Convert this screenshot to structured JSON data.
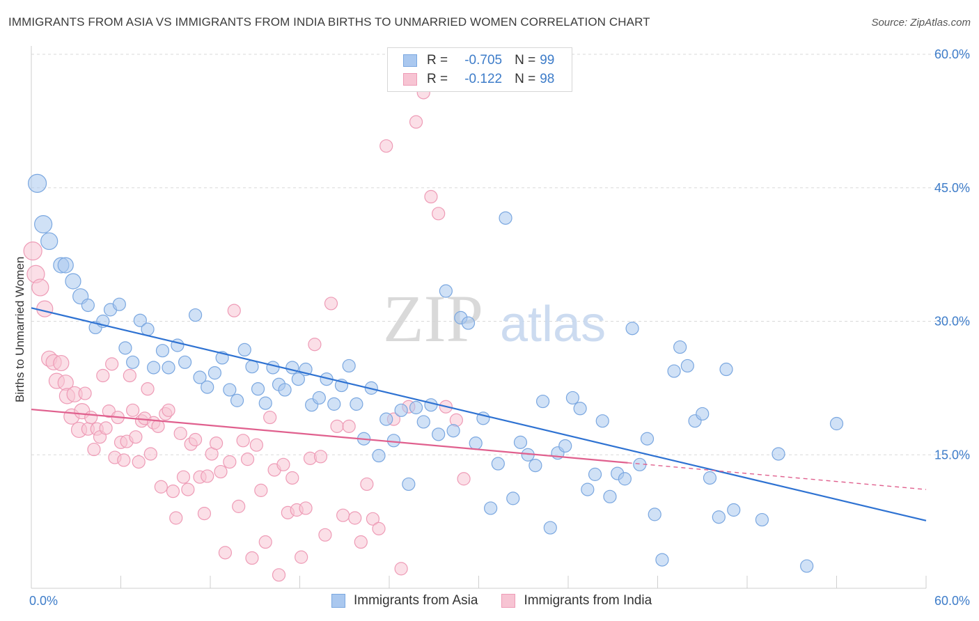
{
  "title": "IMMIGRANTS FROM ASIA VS IMMIGRANTS FROM INDIA BIRTHS TO UNMARRIED WOMEN CORRELATION CHART",
  "source": "Source: ZipAtlas.com",
  "legend": {
    "rows": [
      {
        "r_label": "R =",
        "r_value": "-0.705",
        "n_label": "N =",
        "n_value": "99",
        "color": "#7aa7e0"
      },
      {
        "r_label": "R =",
        "r_value": "-0.122",
        "n_label": "N =",
        "n_value": "98",
        "color": "#f0a0bb"
      }
    ]
  },
  "bottom_legend": {
    "asia": "Immigrants from Asia",
    "india": "Immigrants from India"
  },
  "watermark": {
    "zip": "ZIP",
    "atlas": "atlas"
  },
  "colors": {
    "asia_fill": "#aac8ef",
    "asia_stroke": "#7aa7e0",
    "asia_line": "#2e72d2",
    "india_fill": "#f7c4d3",
    "india_stroke": "#ee9bb6",
    "india_line": "#e0608e",
    "tick_text": "#3d7cc9",
    "grid": "#d9d9d9"
  },
  "chart_data": {
    "type": "scatter",
    "title": "IMMIGRANTS FROM ASIA VS IMMIGRANTS FROM INDIA BIRTHS TO UNMARRIED WOMEN CORRELATION CHART",
    "xlabel": "",
    "ylabel": "Births to Unmarried Women",
    "xlim": [
      0,
      60
    ],
    "ylim": [
      0,
      60
    ],
    "x_tick_labels": [
      "0.0%",
      "60.0%"
    ],
    "y_ticks": [
      15,
      30,
      45,
      60
    ],
    "y_tick_labels": [
      "15.0%",
      "30.0%",
      "45.0%",
      "60.0%"
    ],
    "grid": true,
    "legend_position": "top-center",
    "series": [
      {
        "name": "Immigrants from Asia",
        "trend": {
          "x": [
            0,
            60
          ],
          "y": [
            31.5,
            7.6
          ],
          "extrapolated_from": null
        },
        "points": [
          [
            0.4,
            45.5
          ],
          [
            0.8,
            40.9
          ],
          [
            1.2,
            39.0
          ],
          [
            2.0,
            36.3
          ],
          [
            2.3,
            36.3
          ],
          [
            2.8,
            34.5
          ],
          [
            3.3,
            32.8
          ],
          [
            3.8,
            31.8
          ],
          [
            4.3,
            29.3
          ],
          [
            4.8,
            30.0
          ],
          [
            5.3,
            31.3
          ],
          [
            5.9,
            31.9
          ],
          [
            6.3,
            27.0
          ],
          [
            6.8,
            25.4
          ],
          [
            7.3,
            30.1
          ],
          [
            7.8,
            29.1
          ],
          [
            8.2,
            24.8
          ],
          [
            8.8,
            26.7
          ],
          [
            9.2,
            24.8
          ],
          [
            9.8,
            27.3
          ],
          [
            10.3,
            25.4
          ],
          [
            11.0,
            30.7
          ],
          [
            11.3,
            23.7
          ],
          [
            11.8,
            22.6
          ],
          [
            12.3,
            24.2
          ],
          [
            12.8,
            25.9
          ],
          [
            13.3,
            22.3
          ],
          [
            13.8,
            21.1
          ],
          [
            14.3,
            26.8
          ],
          [
            14.8,
            24.9
          ],
          [
            15.2,
            22.4
          ],
          [
            15.7,
            20.8
          ],
          [
            16.2,
            24.8
          ],
          [
            16.6,
            22.9
          ],
          [
            17.0,
            22.3
          ],
          [
            17.5,
            24.8
          ],
          [
            17.9,
            23.5
          ],
          [
            18.4,
            24.6
          ],
          [
            18.8,
            20.6
          ],
          [
            19.3,
            21.4
          ],
          [
            19.8,
            23.5
          ],
          [
            20.3,
            20.7
          ],
          [
            20.8,
            22.8
          ],
          [
            21.3,
            25.0
          ],
          [
            21.8,
            20.7
          ],
          [
            22.3,
            16.8
          ],
          [
            22.8,
            22.5
          ],
          [
            23.3,
            14.9
          ],
          [
            23.8,
            19.0
          ],
          [
            24.3,
            16.6
          ],
          [
            24.8,
            20.0
          ],
          [
            25.3,
            11.7
          ],
          [
            25.8,
            20.3
          ],
          [
            26.3,
            18.7
          ],
          [
            26.8,
            20.6
          ],
          [
            27.3,
            17.3
          ],
          [
            27.8,
            33.4
          ],
          [
            28.3,
            17.7
          ],
          [
            28.8,
            30.4
          ],
          [
            29.3,
            29.8
          ],
          [
            29.8,
            16.3
          ],
          [
            30.3,
            19.1
          ],
          [
            30.8,
            9.0
          ],
          [
            31.3,
            14.0
          ],
          [
            31.8,
            41.6
          ],
          [
            32.3,
            10.1
          ],
          [
            32.8,
            16.4
          ],
          [
            33.3,
            15.0
          ],
          [
            33.8,
            13.8
          ],
          [
            34.3,
            21.0
          ],
          [
            34.8,
            6.8
          ],
          [
            35.3,
            15.2
          ],
          [
            35.8,
            16.0
          ],
          [
            36.3,
            21.4
          ],
          [
            36.8,
            20.2
          ],
          [
            37.3,
            11.1
          ],
          [
            37.8,
            12.8
          ],
          [
            38.3,
            18.8
          ],
          [
            38.8,
            10.3
          ],
          [
            39.3,
            12.9
          ],
          [
            39.8,
            12.3
          ],
          [
            40.3,
            29.2
          ],
          [
            40.8,
            13.9
          ],
          [
            41.3,
            16.8
          ],
          [
            41.8,
            8.3
          ],
          [
            42.3,
            3.2
          ],
          [
            43.1,
            24.4
          ],
          [
            43.5,
            27.1
          ],
          [
            44.0,
            25.0
          ],
          [
            44.5,
            18.8
          ],
          [
            45.0,
            19.6
          ],
          [
            45.5,
            12.4
          ],
          [
            46.1,
            8.0
          ],
          [
            46.6,
            24.6
          ],
          [
            47.1,
            8.8
          ],
          [
            49.0,
            7.7
          ],
          [
            50.1,
            15.1
          ],
          [
            52.0,
            2.5
          ],
          [
            54.0,
            18.5
          ]
        ]
      },
      {
        "name": "Immigrants from India",
        "trend": {
          "x": [
            0,
            40
          ],
          "y": [
            20.1,
            14.1
          ],
          "extrapolated_to": [
            60,
            11.1
          ]
        },
        "points": [
          [
            0.1,
            37.9
          ],
          [
            0.3,
            35.3
          ],
          [
            0.6,
            33.8
          ],
          [
            0.9,
            31.4
          ],
          [
            1.2,
            25.8
          ],
          [
            1.5,
            25.4
          ],
          [
            1.7,
            23.3
          ],
          [
            2.0,
            25.3
          ],
          [
            2.3,
            23.1
          ],
          [
            2.4,
            21.6
          ],
          [
            2.7,
            19.3
          ],
          [
            2.9,
            21.8
          ],
          [
            3.2,
            17.8
          ],
          [
            3.4,
            19.9
          ],
          [
            3.6,
            21.9
          ],
          [
            3.8,
            17.9
          ],
          [
            4.0,
            19.2
          ],
          [
            4.2,
            15.6
          ],
          [
            4.4,
            17.9
          ],
          [
            4.6,
            17.0
          ],
          [
            4.8,
            23.9
          ],
          [
            5.0,
            18.0
          ],
          [
            5.2,
            19.9
          ],
          [
            5.4,
            25.2
          ],
          [
            5.6,
            14.7
          ],
          [
            5.8,
            19.2
          ],
          [
            6.0,
            16.4
          ],
          [
            6.2,
            14.4
          ],
          [
            6.4,
            16.5
          ],
          [
            6.6,
            23.9
          ],
          [
            6.8,
            20.0
          ],
          [
            7.0,
            17.0
          ],
          [
            7.2,
            14.2
          ],
          [
            7.4,
            18.8
          ],
          [
            7.6,
            19.1
          ],
          [
            7.8,
            22.4
          ],
          [
            8.0,
            15.1
          ],
          [
            8.2,
            18.6
          ],
          [
            8.5,
            18.2
          ],
          [
            8.7,
            11.4
          ],
          [
            9.0,
            19.6
          ],
          [
            9.2,
            20.0
          ],
          [
            9.5,
            10.9
          ],
          [
            9.7,
            7.9
          ],
          [
            10.0,
            17.4
          ],
          [
            10.2,
            12.5
          ],
          [
            10.5,
            11.1
          ],
          [
            10.7,
            16.2
          ],
          [
            11.0,
            16.7
          ],
          [
            11.3,
            12.5
          ],
          [
            11.6,
            8.4
          ],
          [
            11.8,
            12.6
          ],
          [
            12.1,
            15.1
          ],
          [
            12.4,
            16.3
          ],
          [
            12.7,
            13.1
          ],
          [
            13.0,
            4.0
          ],
          [
            13.3,
            14.2
          ],
          [
            13.6,
            31.2
          ],
          [
            13.9,
            9.2
          ],
          [
            14.2,
            16.6
          ],
          [
            14.5,
            14.5
          ],
          [
            14.8,
            3.4
          ],
          [
            15.1,
            16.1
          ],
          [
            15.4,
            11.0
          ],
          [
            15.7,
            5.2
          ],
          [
            16.0,
            19.2
          ],
          [
            16.3,
            13.3
          ],
          [
            16.6,
            1.5
          ],
          [
            16.9,
            13.9
          ],
          [
            17.2,
            8.5
          ],
          [
            17.5,
            12.4
          ],
          [
            17.8,
            8.8
          ],
          [
            18.1,
            3.5
          ],
          [
            18.4,
            9.0
          ],
          [
            18.7,
            14.6
          ],
          [
            19.0,
            27.4
          ],
          [
            19.4,
            14.8
          ],
          [
            19.7,
            6.0
          ],
          [
            20.1,
            32.0
          ],
          [
            20.5,
            18.2
          ],
          [
            20.9,
            8.2
          ],
          [
            21.3,
            18.2
          ],
          [
            21.7,
            7.9
          ],
          [
            22.1,
            5.2
          ],
          [
            22.5,
            11.7
          ],
          [
            22.9,
            7.8
          ],
          [
            23.3,
            6.7
          ],
          [
            23.8,
            49.7
          ],
          [
            24.3,
            19.0
          ],
          [
            24.8,
            2.2
          ],
          [
            25.3,
            20.4
          ],
          [
            25.8,
            52.4
          ],
          [
            26.3,
            55.7
          ],
          [
            26.8,
            44.0
          ],
          [
            27.3,
            42.1
          ],
          [
            27.8,
            20.4
          ],
          [
            28.5,
            18.9
          ],
          [
            29.0,
            12.3
          ]
        ]
      }
    ]
  }
}
